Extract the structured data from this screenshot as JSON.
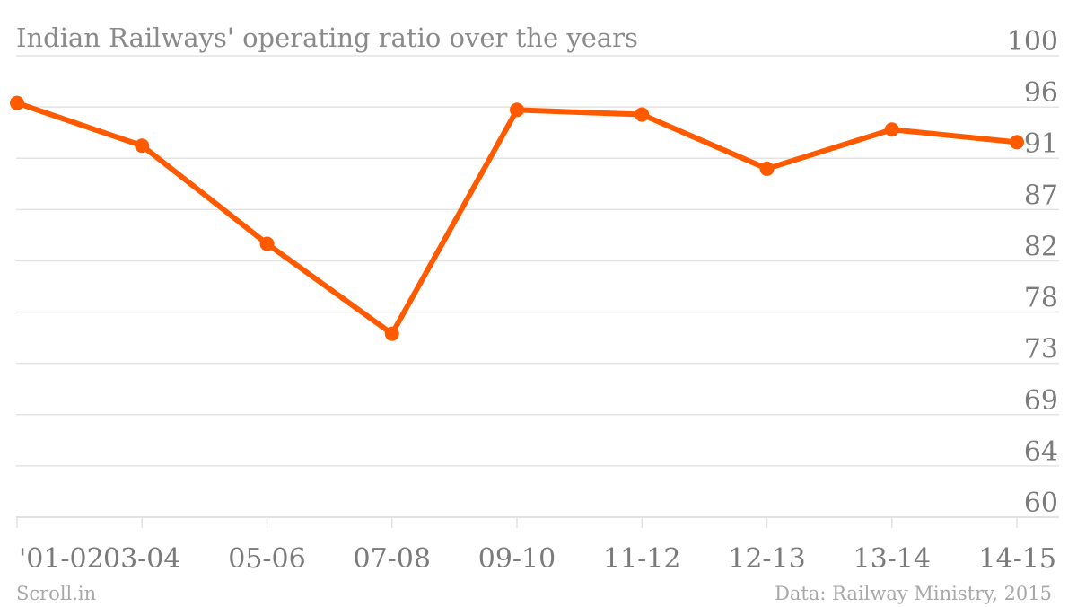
{
  "chart_data": {
    "type": "line",
    "title": "Indian Railways' operating ratio over the years",
    "categories": [
      "'01-02",
      "03-04",
      "05-06",
      "07-08",
      "09-10",
      "11-12",
      "12-13",
      "13-14",
      "14-15"
    ],
    "series": [
      {
        "values": [
          95.9,
          92.2,
          83.7,
          75.9,
          95.3,
          94.9,
          90.2,
          93.6,
          92.5
        ],
        "color": "#ff5a00"
      }
    ],
    "yticks": [
      "100",
      "96",
      "91",
      "87",
      "82",
      "78",
      "73",
      "69",
      "64",
      "60"
    ],
    "ylim": [
      60,
      100
    ],
    "grid": true,
    "legend": "none",
    "xlabel": "",
    "ylabel": ""
  },
  "footer": {
    "source_left": "Scroll.in",
    "source_right": "Data: Railway Ministry, 2015"
  },
  "colors": {
    "line": "#ff5a00",
    "grid": "#e3e3e3",
    "text": "#7b7b7b"
  }
}
